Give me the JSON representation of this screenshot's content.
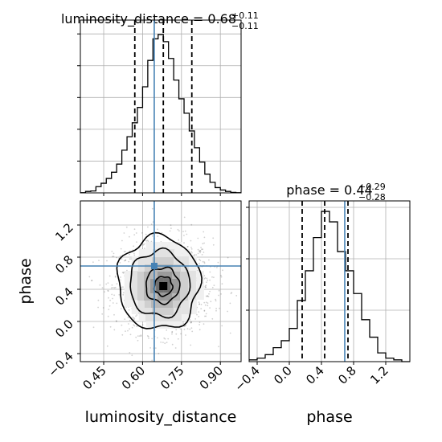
{
  "chart_data": {
    "type": "corner",
    "parameters": [
      "luminosity_distance",
      "phase"
    ],
    "panels": {
      "luminosity_distance_hist": {
        "title": {
          "prefix": "luminosity_distance = 0.68",
          "sup": "+0.11",
          "sub": "−0.11"
        },
        "xlim": [
          0.36,
          0.98
        ],
        "bins": [
          0.36,
          0.38,
          0.4,
          0.42,
          0.44,
          0.46,
          0.48,
          0.5,
          0.52,
          0.54,
          0.56,
          0.58,
          0.6,
          0.62,
          0.64,
          0.66,
          0.68,
          0.7,
          0.72,
          0.74,
          0.76,
          0.78,
          0.8,
          0.82,
          0.84,
          0.86,
          0.88,
          0.9,
          0.92,
          0.94,
          0.96,
          0.98
        ],
        "counts": [
          0.2,
          1.5,
          2.0,
          6.5,
          10.0,
          15.0,
          21.5,
          30.0,
          44.5,
          58.5,
          73.0,
          89.0,
          110.5,
          138.0,
          160.5,
          165.0,
          157.5,
          140.0,
          117.5,
          98.0,
          83.0,
          64.5,
          47.0,
          32.0,
          19.5,
          11.0,
          5.5,
          3.0,
          1.5,
          0.5,
          0.2
        ],
        "ymax": 180,
        "quantiles": [
          0.57,
          0.68,
          0.79
        ],
        "truth": 0.645
      },
      "phase_hist": {
        "title": {
          "prefix": "phase = 0.44",
          "sup": "+0.29",
          "sub": "−0.28"
        },
        "xlim": [
          -0.5,
          1.5
        ],
        "bins": [
          -0.5,
          -0.4,
          -0.3,
          -0.2,
          -0.1,
          0.0,
          0.1,
          0.2,
          0.3,
          0.4,
          0.5,
          0.6,
          0.7,
          0.8,
          0.9,
          1.0,
          1.1,
          1.2,
          1.3,
          1.4,
          1.5
        ],
        "counts": [
          1,
          2,
          4,
          8,
          12,
          19,
          35,
          52,
          71,
          86,
          80,
          63,
          52,
          39,
          24,
          14,
          5,
          2,
          1,
          0
        ],
        "ymax": 92,
        "quantiles": [
          0.16,
          0.44,
          0.73
        ],
        "truth": 0.69
      },
      "scatter_2d": {
        "xlim": [
          0.36,
          0.98
        ],
        "ylim": [
          -0.5,
          1.5
        ],
        "truth": {
          "x": 0.645,
          "y": 0.69
        },
        "peak": {
          "x": 0.68,
          "y": 0.44
        },
        "spread": {
          "x": 0.1,
          "y": 0.28
        },
        "contour_levels": [
          {
            "rx": 0.035,
            "ry": 0.12,
            "x": 0.68,
            "y": 0.44
          },
          {
            "rx": 0.065,
            "ry": 0.22,
            "x": 0.677,
            "y": 0.45
          },
          {
            "rx": 0.115,
            "ry": 0.41,
            "x": 0.665,
            "y": 0.47
          },
          {
            "rx": 0.158,
            "ry": 0.58,
            "x": 0.662,
            "y": 0.48
          }
        ]
      }
    },
    "xticks_bottom_left": {
      "values": [
        0.45,
        0.6,
        0.75,
        0.9
      ],
      "labels": [
        "0.45",
        "0.60",
        "0.75",
        "0.90"
      ]
    },
    "yticks_left": {
      "values": [
        -0.4,
        0.0,
        0.4,
        0.8,
        1.2
      ],
      "labels": [
        "−0.4",
        "0.0",
        "0.4",
        "0.8",
        "1.2"
      ]
    },
    "xticks_bottom_right": {
      "values": [
        -0.4,
        0.0,
        0.4,
        0.8,
        1.2
      ],
      "labels": [
        "−0.4",
        "0.0",
        "0.4",
        "0.8",
        "1.2"
      ]
    },
    "xlabel_left": "luminosity_distance",
    "xlabel_right": "phase",
    "ylabel_left": "phase",
    "colors": {
      "truth": "#4682b4",
      "hist": "#000000",
      "grid": "#b0b0b0"
    }
  }
}
